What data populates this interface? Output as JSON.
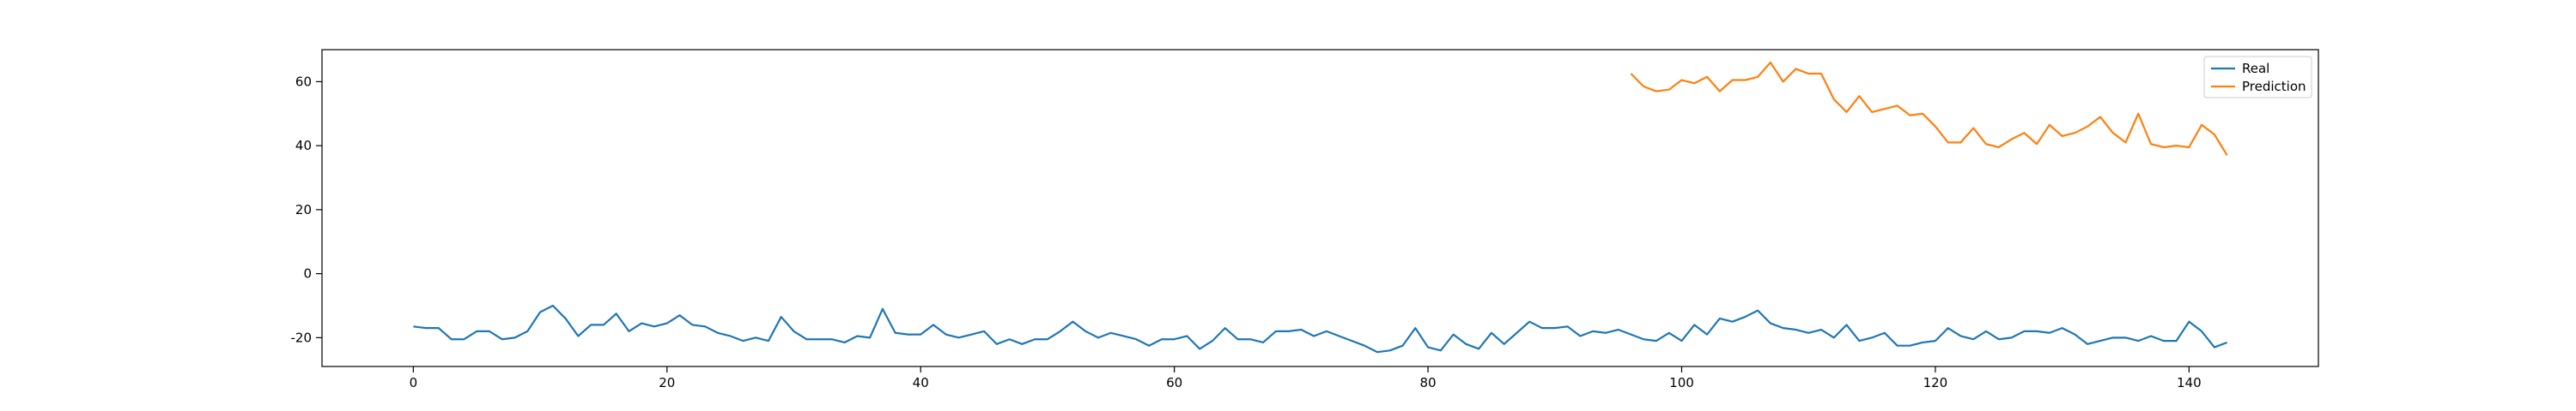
{
  "chart_data": {
    "type": "line",
    "title": "",
    "xlabel": "",
    "ylabel": "",
    "xlim": [
      -7.2,
      150.2
    ],
    "ylim": [
      -29,
      70
    ],
    "xticks": [
      0,
      20,
      40,
      60,
      80,
      100,
      120,
      140
    ],
    "yticks": [
      -20,
      0,
      20,
      40,
      60
    ],
    "grid": false,
    "legend_position": "upper right",
    "series": [
      {
        "name": "Real",
        "color": "#1f77b4",
        "x_start": 0,
        "values": [
          -16.5,
          -17,
          -17,
          -20.5,
          -20.5,
          -18,
          -18,
          -20.5,
          -20,
          -18,
          -12,
          -10,
          -14,
          -19.5,
          -16,
          -16,
          -12.5,
          -18,
          -15.5,
          -16.5,
          -15.5,
          -13,
          -16,
          -16.5,
          -18.5,
          -19.5,
          -21,
          -20,
          -21,
          -13.5,
          -18,
          -20.5,
          -20.5,
          -20.5,
          -21.5,
          -19.5,
          -20,
          -11,
          -18.5,
          -19,
          -19,
          -16,
          -19,
          -20,
          -19,
          -18,
          -22,
          -20.5,
          -22,
          -20.5,
          -20.5,
          -18,
          -15,
          -18,
          -20,
          -18.5,
          -19.5,
          -20.5,
          -22.5,
          -20.5,
          -20.5,
          -19.5,
          -23.5,
          -21,
          -17,
          -20.5,
          -20.5,
          -21.5,
          -18,
          -18,
          -17.5,
          -19.5,
          -18,
          -19.5,
          -21,
          -22.5,
          -24.5,
          -24,
          -22.5,
          -17,
          -23,
          -24,
          -19,
          -22,
          -23.5,
          -18.5,
          -22,
          -18.5,
          -15,
          -17,
          -17,
          -16.5,
          -19.5,
          -18,
          -18.5,
          -17.5,
          -19,
          -20.5,
          -21,
          -18.5,
          -21,
          -16,
          -19,
          -14,
          -15,
          -13.5,
          -11.5,
          -15.5,
          -17,
          -17.5,
          -18.5,
          -17.5,
          -20,
          -16,
          -21,
          -20,
          -18.5,
          -22.5,
          -22.5,
          -21.5,
          -21,
          -17,
          -19.5,
          -20.5,
          -18,
          -20.5,
          -20,
          -18,
          -18,
          -18.5,
          -17,
          -19,
          -22,
          -21,
          -20,
          -20,
          -21,
          -19.5,
          -21,
          -21,
          -15,
          -18,
          -23,
          -21.5
        ]
      },
      {
        "name": "Prediction",
        "color": "#ff7f0e",
        "x_start": 96,
        "values": [
          62.5,
          58.5,
          57,
          57.5,
          60.5,
          59.5,
          61.5,
          57,
          60.5,
          60.5,
          61.5,
          66,
          60,
          64,
          62.5,
          62.5,
          54.5,
          50.5,
          55.5,
          50.5,
          51.5,
          52.5,
          49.5,
          50,
          46,
          41,
          41,
          45.5,
          40.5,
          39.5,
          42,
          44,
          40.5,
          46.5,
          43,
          44,
          46,
          49,
          44,
          41,
          50,
          40.5,
          39.5,
          40,
          39.5,
          46.5,
          43.5,
          37
        ]
      }
    ]
  }
}
